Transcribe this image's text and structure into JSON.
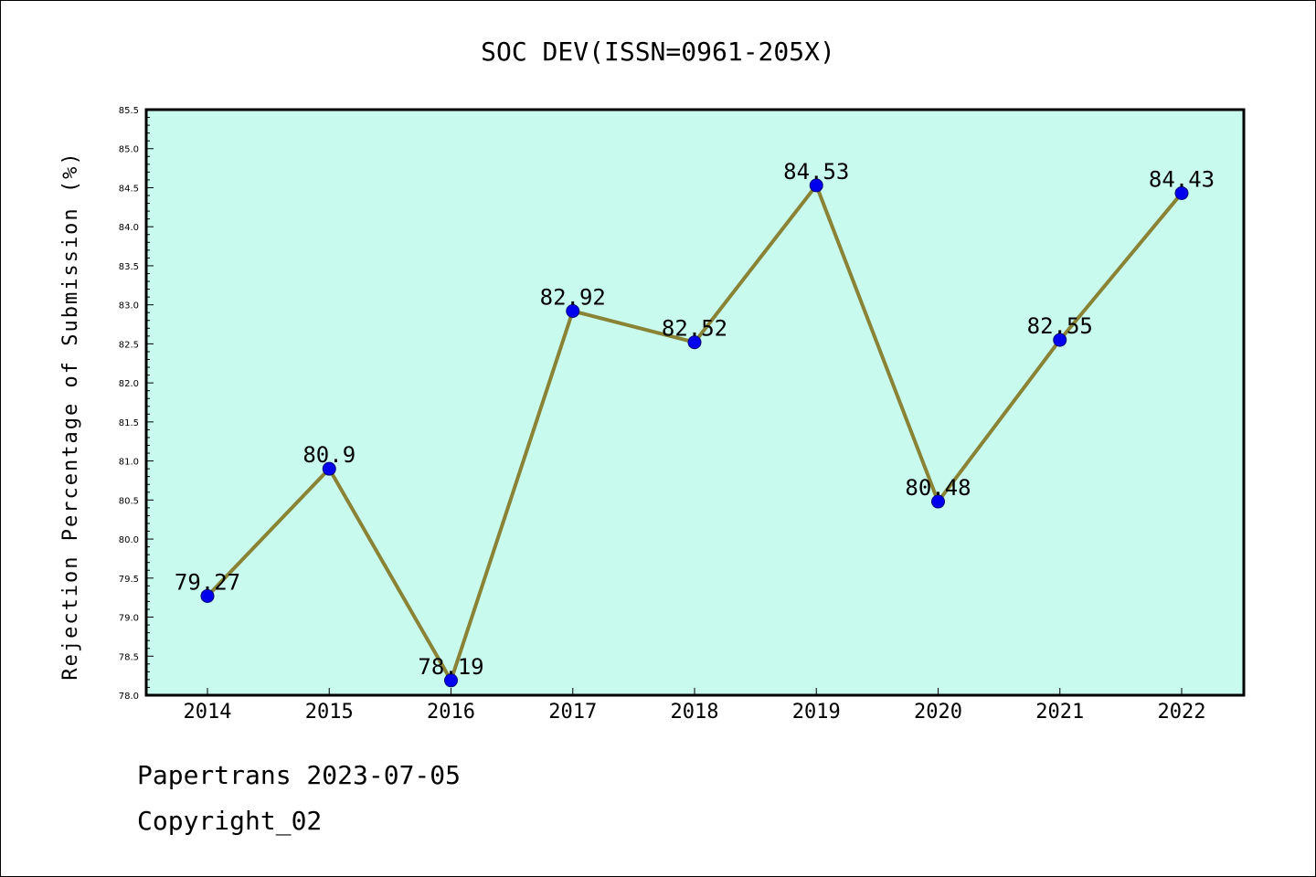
{
  "footer": {
    "line1": "Papertrans 2023-07-05",
    "line2": "Copyright_02"
  },
  "colors": {
    "plot_background": "#c8fbee",
    "line": "#8a8235",
    "marker": "#0000ee",
    "axes": "#000000"
  },
  "chart_data": {
    "type": "line",
    "title": "SOC DEV(ISSN=0961-205X)",
    "xlabel": "",
    "ylabel": "Rejection Percentage of Submission (%)",
    "categories": [
      "2014",
      "2015",
      "2016",
      "2017",
      "2018",
      "2019",
      "2020",
      "2021",
      "2022"
    ],
    "series": [
      {
        "values": [
          79.27,
          80.9,
          78.19,
          82.92,
          82.52,
          84.53,
          80.48,
          82.55,
          84.43
        ],
        "labels": [
          "79.27",
          "80.9",
          "78.19",
          "82.92",
          "82.52",
          "84.53",
          "80.48",
          "82.55",
          "84.43"
        ]
      }
    ],
    "ylim": [
      78.0,
      85.5
    ],
    "yticks": [
      "78.0",
      "78.5",
      "79.0",
      "79.5",
      "80.0",
      "80.5",
      "81.0",
      "81.5",
      "82.0",
      "82.5",
      "83.0",
      "83.5",
      "84.0",
      "84.5",
      "85.0",
      "85.5"
    ],
    "grid": false,
    "legend": false
  }
}
